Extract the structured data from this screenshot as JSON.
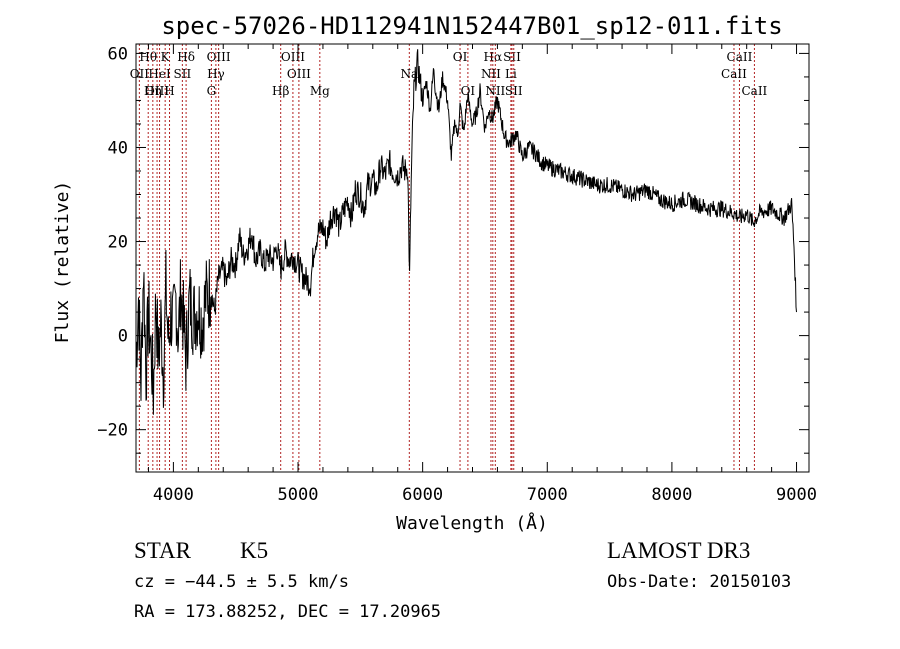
{
  "chart_data": {
    "type": "line",
    "title": "spec-57026-HD112941N152447B01_sp12-011.fits",
    "xlabel": "Wavelength (Å)",
    "ylabel": "Flux (relative)",
    "xlim": [
      3700,
      9100
    ],
    "ylim": [
      -29,
      62
    ],
    "xticks": [
      4000,
      5000,
      6000,
      7000,
      8000,
      9000
    ],
    "yticks": [
      -20,
      0,
      20,
      40,
      60
    ],
    "grid": false,
    "line_color": "#000000",
    "marker_color": "#b22222",
    "series": [
      {
        "x": [
          3700,
          3720,
          3740,
          3760,
          3780,
          3800,
          3820,
          3840,
          3860,
          3880,
          3900,
          3920,
          3940,
          3960,
          3980,
          4000,
          4020,
          4040,
          4060,
          4080,
          4100,
          4130,
          4160,
          4200,
          4230,
          4260,
          4300,
          4330,
          4360,
          4400,
          4430,
          4460,
          4500,
          4530,
          4560,
          4600,
          4630,
          4660,
          4700,
          4730,
          4760,
          4800,
          4830,
          4860,
          4900,
          4930,
          4960,
          5000,
          5030,
          5060,
          5100,
          5130,
          5160,
          5200,
          5230,
          5260,
          5300,
          5330,
          5360,
          5400,
          5430,
          5460,
          5500,
          5530,
          5560,
          5600,
          5630,
          5660,
          5700,
          5730,
          5760,
          5800,
          5830,
          5860,
          5880,
          5895,
          5905,
          5915,
          5930,
          5960,
          6000,
          6030,
          6060,
          6090,
          6100,
          6130,
          6160,
          6200,
          6230,
          6260,
          6280,
          6300,
          6330,
          6360,
          6400,
          6430,
          6460,
          6500,
          6530,
          6560,
          6600,
          6630,
          6660,
          6700,
          6750,
          6800,
          6850,
          6900,
          6950,
          7000,
          7100,
          7200,
          7300,
          7400,
          7500,
          7600,
          7700,
          7800,
          7900,
          8000,
          8100,
          8200,
          8300,
          8400,
          8500,
          8550,
          8600,
          8650,
          8700,
          8800,
          8900,
          8960,
          8980,
          9000
        ],
        "y": [
          -5,
          8,
          -10,
          15,
          -8,
          5,
          -3,
          -12,
          8,
          -5,
          3,
          -8,
          10,
          -2,
          5,
          2,
          8,
          0,
          10,
          3,
          -5,
          8,
          4,
          6,
          3,
          8,
          10,
          5,
          12,
          14,
          11,
          16,
          15,
          21,
          17,
          19,
          22,
          16,
          18,
          15,
          17,
          16,
          19,
          14,
          18,
          16,
          17,
          15,
          13,
          12,
          11,
          19,
          22,
          23,
          20,
          25,
          27,
          23,
          26,
          29,
          25,
          31,
          30,
          27,
          32,
          33,
          31,
          36,
          34,
          37,
          35,
          34,
          36,
          35,
          36,
          12,
          28,
          40,
          52,
          58,
          50,
          54,
          48,
          57,
          53,
          48,
          55,
          50,
          38,
          46,
          42,
          49,
          43,
          51,
          45,
          47,
          52,
          44,
          48,
          46,
          50,
          46,
          42,
          41,
          43,
          38,
          40,
          39,
          37,
          36,
          35,
          34,
          33,
          32,
          32,
          31,
          30,
          31,
          29,
          28,
          29,
          28,
          27,
          27,
          26,
          25,
          26,
          24,
          26,
          27,
          25,
          28,
          19,
          5
        ]
      }
    ],
    "line_markers": [
      {
        "label": "Hθ",
        "x": 3798,
        "row": 0
      },
      {
        "label": "OII",
        "x": 3727,
        "row": 1
      },
      {
        "label": "OIII",
        "x": 3869,
        "row": 2
      },
      {
        "label": "HeI",
        "x": 3889,
        "row": 1
      },
      {
        "label": "Hη",
        "x": 3835,
        "row": 2
      },
      {
        "label": "K",
        "x": 3934,
        "row": 0
      },
      {
        "label": "H",
        "x": 3969,
        "row": 2
      },
      {
        "label": "SII",
        "x": 4072,
        "row": 1
      },
      {
        "label": "Hδ",
        "x": 4102,
        "row": 0
      },
      {
        "label": "OIII",
        "x": 4363,
        "row": 0
      },
      {
        "label": "Hγ",
        "x": 4341,
        "row": 1
      },
      {
        "label": "G",
        "x": 4305,
        "row": 2
      },
      {
        "label": "Hβ",
        "x": 4861,
        "row": 2
      },
      {
        "label": "OIII",
        "x": 4959,
        "row": 0
      },
      {
        "label": "OIII",
        "x": 5007,
        "row": 1
      },
      {
        "label": "Mg",
        "x": 5175,
        "row": 2
      },
      {
        "label": "Na",
        "x": 5893,
        "row": 1
      },
      {
        "label": "OI",
        "x": 6300,
        "row": 0
      },
      {
        "label": "OI",
        "x": 6363,
        "row": 2
      },
      {
        "label": "Hα",
        "x": 6563,
        "row": 0
      },
      {
        "label": "NII",
        "x": 6548,
        "row": 1
      },
      {
        "label": "NII",
        "x": 6583,
        "row": 2
      },
      {
        "label": "SII",
        "x": 6717,
        "row": 0
      },
      {
        "label": "Li",
        "x": 6708,
        "row": 1
      },
      {
        "label": "SII",
        "x": 6731,
        "row": 2
      },
      {
        "label": "CaII",
        "x": 8542,
        "row": 0
      },
      {
        "label": "CaII",
        "x": 8498,
        "row": 1
      },
      {
        "label": "CaII",
        "x": 8662,
        "row": 2
      }
    ]
  },
  "info": {
    "class": "STAR",
    "subclass": "K5",
    "survey": "LAMOST DR3",
    "cz": "cz = −44.5 ± 5.5 km/s",
    "obs_date": "Obs-Date: 20150103",
    "radec": "RA = 173.88252, DEC =  17.20965"
  }
}
